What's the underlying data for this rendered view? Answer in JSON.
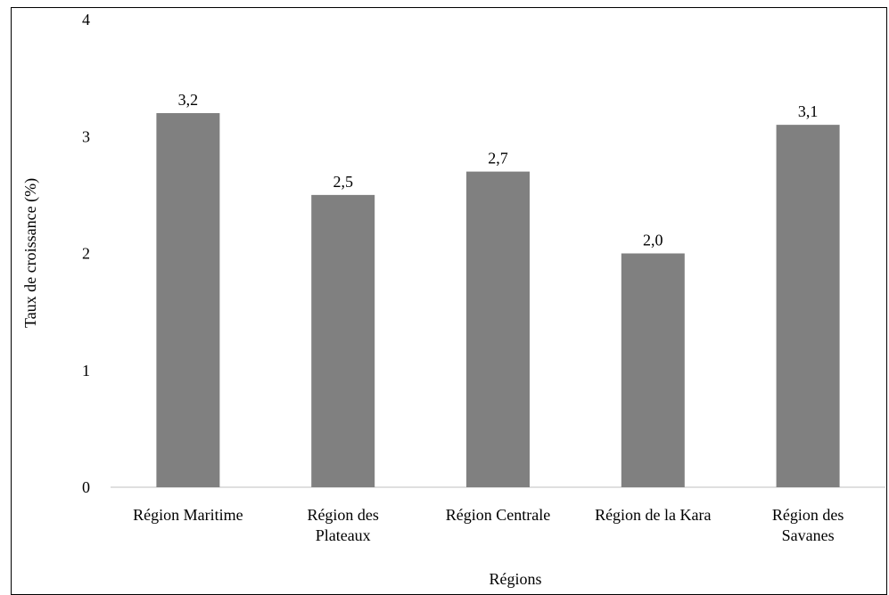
{
  "chart_data": {
    "type": "bar",
    "categories": [
      [
        "Région Maritime"
      ],
      [
        "Région des",
        "Plateaux"
      ],
      [
        "Région Centrale"
      ],
      [
        "Région de la Kara"
      ],
      [
        "Région des",
        "Savanes"
      ]
    ],
    "values": [
      3.2,
      2.5,
      2.7,
      2.0,
      3.1
    ],
    "data_labels": [
      "3,2",
      "2,5",
      "2,7",
      "2,0",
      "3,1"
    ],
    "xlabel": "Régions",
    "ylabel": "Taux de croissance (%)",
    "ylim": [
      0,
      4
    ],
    "yticks": [
      0,
      1,
      2,
      3,
      4
    ],
    "bar_color": "#808080",
    "grid": false
  }
}
